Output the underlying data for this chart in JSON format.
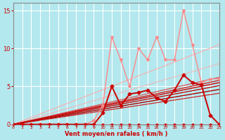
{
  "xlabel": "Vent moyen/en rafales ( km/h )",
  "bg_color": "#b3e8ee",
  "grid_color": "#ffffff",
  "xlim": [
    0,
    23
  ],
  "ylim": [
    0,
    16
  ],
  "yticks": [
    0,
    5,
    10,
    15
  ],
  "xticks": [
    0,
    1,
    2,
    3,
    4,
    5,
    6,
    7,
    8,
    9,
    10,
    11,
    12,
    13,
    14,
    15,
    16,
    17,
    18,
    19,
    20,
    21,
    22,
    23
  ],
  "series": [
    {
      "x": [
        0,
        23
      ],
      "y": [
        0,
        10.5
      ],
      "color": "#ffaaaa",
      "linewidth": 0.9,
      "marker": null,
      "markersize": 0,
      "alpha": 0.85,
      "zorder": 2
    },
    {
      "x": [
        0,
        23
      ],
      "y": [
        0,
        8.0
      ],
      "color": "#ffaaaa",
      "linewidth": 0.9,
      "marker": null,
      "markersize": 0,
      "alpha": 0.7,
      "zorder": 2
    },
    {
      "x": [
        0,
        23
      ],
      "y": [
        0,
        6.2
      ],
      "color": "#dd4444",
      "linewidth": 0.9,
      "marker": null,
      "markersize": 0,
      "alpha": 0.9,
      "zorder": 3
    },
    {
      "x": [
        0,
        23
      ],
      "y": [
        0,
        5.8
      ],
      "color": "#cc2222",
      "linewidth": 1.0,
      "marker": null,
      "markersize": 0,
      "alpha": 1.0,
      "zorder": 3
    },
    {
      "x": [
        0,
        23
      ],
      "y": [
        0,
        5.5
      ],
      "color": "#cc1111",
      "linewidth": 1.1,
      "marker": null,
      "markersize": 0,
      "alpha": 1.0,
      "zorder": 3
    },
    {
      "x": [
        0,
        23
      ],
      "y": [
        0,
        5.1
      ],
      "color": "#bb1111",
      "linewidth": 1.0,
      "marker": null,
      "markersize": 0,
      "alpha": 1.0,
      "zorder": 3
    },
    {
      "x": [
        0,
        23
      ],
      "y": [
        0,
        4.6
      ],
      "color": "#aa0000",
      "linewidth": 1.0,
      "marker": null,
      "markersize": 0,
      "alpha": 1.0,
      "zorder": 3
    },
    {
      "x": [
        0,
        23
      ],
      "y": [
        0,
        4.1
      ],
      "color": "#cc1111",
      "linewidth": 0.9,
      "marker": null,
      "markersize": 0,
      "alpha": 0.9,
      "zorder": 3
    },
    {
      "x": [
        0,
        1,
        2,
        3,
        4,
        5,
        6,
        7,
        8,
        9,
        10,
        11,
        12,
        13,
        14,
        15,
        16,
        17,
        18,
        19,
        20,
        21,
        22,
        23
      ],
      "y": [
        0,
        0,
        0,
        0,
        0,
        0,
        0,
        0,
        0,
        0.5,
        2.5,
        11.5,
        8.5,
        5.0,
        10.0,
        8.5,
        11.5,
        8.5,
        8.5,
        15.0,
        10.5,
        5.5,
        6.0,
        6.0
      ],
      "color": "#ff8888",
      "linewidth": 1.0,
      "marker": "*",
      "markersize": 3,
      "alpha": 1.0,
      "zorder": 6
    },
    {
      "x": [
        0,
        1,
        2,
        3,
        4,
        5,
        6,
        7,
        8,
        9,
        10,
        11,
        12,
        13,
        14,
        15,
        16,
        17,
        18,
        19,
        20,
        21,
        22,
        23
      ],
      "y": [
        0,
        0,
        0,
        0,
        0,
        0,
        0,
        0,
        0,
        0,
        1.5,
        5.0,
        2.5,
        4.0,
        4.2,
        4.5,
        3.5,
        3.0,
        4.5,
        6.5,
        5.5,
        5.2,
        1.2,
        0
      ],
      "color": "#cc0000",
      "linewidth": 1.4,
      "marker": "D",
      "markersize": 2.5,
      "alpha": 1.0,
      "zorder": 7
    },
    {
      "x": [
        0,
        1,
        2,
        3,
        4,
        5,
        6,
        7,
        8,
        9,
        10,
        11,
        12,
        13,
        14,
        15,
        16,
        17,
        18,
        19,
        20,
        21,
        22,
        23
      ],
      "y": [
        0,
        0,
        0,
        0,
        0,
        0,
        0,
        0,
        0,
        0,
        0,
        0,
        0,
        0,
        0,
        0,
        0,
        0,
        0,
        0,
        0,
        0,
        0,
        0
      ],
      "color": "#cc0000",
      "linewidth": 1.0,
      "marker": "D",
      "markersize": 2.0,
      "alpha": 0.7,
      "zorder": 6
    }
  ]
}
